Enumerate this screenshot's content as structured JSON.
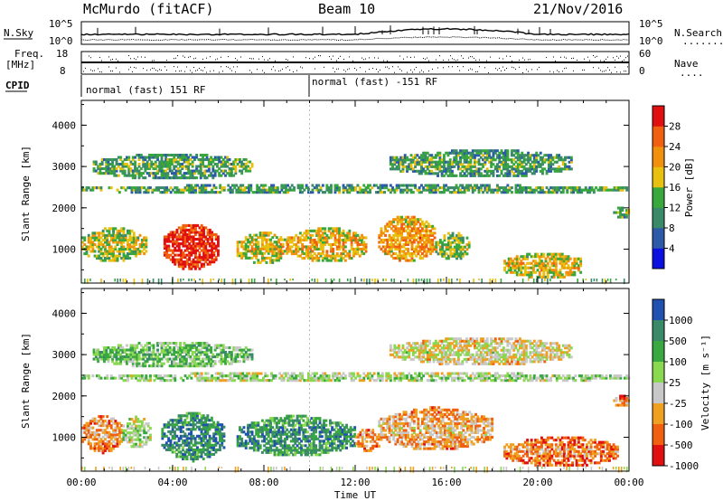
{
  "header": {
    "station": "McMurdo (fitACF)",
    "beam": "Beam 10",
    "date": "21/Nov/2016"
  },
  "top_strip": {
    "left_label": "N.Sky",
    "left_ticks": [
      "10^5",
      "10^0"
    ],
    "right_label": "N.Search",
    "right_ticks": [
      "10^5",
      "10^0"
    ],
    "right_legend_dots": "........"
  },
  "freq_strip": {
    "label_line1": "Freq.",
    "label_line2": "[MHz]",
    "left_ticks": [
      "18",
      "8"
    ],
    "right_label": "Nave",
    "right_ticks": [
      "60",
      "0"
    ],
    "right_legend_dots": "...."
  },
  "cpid_strip": {
    "label": "CPID",
    "segments": [
      {
        "text": "normal (fast) 151 RF",
        "start_hour": 0
      },
      {
        "text": "normal (fast) -151 RF",
        "start_hour": 10
      }
    ]
  },
  "chart_data": [
    {
      "type": "heatmap",
      "panel": "power",
      "ylabel": "Slant Range [km]",
      "ylim": [
        180,
        4600
      ],
      "yticks": [
        "1000",
        "2000",
        "3000",
        "4000"
      ],
      "xlim_hours": [
        0,
        24
      ],
      "colorbar": {
        "label": "Power [dB]",
        "ticks": [
          "4",
          "8",
          "12",
          "16",
          "20",
          "24",
          "28"
        ],
        "range": [
          0,
          30
        ]
      },
      "bands": [
        {
          "t0": 0.0,
          "t1": 2.8,
          "r0": 650,
          "r1": 1500,
          "level": 0.45
        },
        {
          "t0": 3.6,
          "t1": 6.0,
          "r0": 450,
          "r1": 1600,
          "level": 0.85
        },
        {
          "t0": 6.8,
          "t1": 9.0,
          "r0": 600,
          "r1": 1400,
          "level": 0.5
        },
        {
          "t0": 9.0,
          "t1": 12.5,
          "r0": 650,
          "r1": 1500,
          "level": 0.55
        },
        {
          "t0": 13.0,
          "t1": 15.5,
          "r0": 650,
          "r1": 1800,
          "level": 0.6
        },
        {
          "t0": 15.5,
          "t1": 17.0,
          "r0": 700,
          "r1": 1400,
          "level": 0.4
        },
        {
          "t0": 18.5,
          "t1": 22.0,
          "r0": 250,
          "r1": 900,
          "level": 0.5
        },
        {
          "t0": 0.0,
          "t1": 24.0,
          "r0": 2300,
          "r1": 2550,
          "level": 0.3
        },
        {
          "t0": 0.5,
          "t1": 7.5,
          "r0": 2650,
          "r1": 3300,
          "level": 0.3
        },
        {
          "t0": 13.5,
          "t1": 21.5,
          "r0": 2700,
          "r1": 3400,
          "level": 0.3
        },
        {
          "t0": 23.3,
          "t1": 24.0,
          "r0": 1700,
          "r1": 2000,
          "level": 0.35
        }
      ]
    },
    {
      "type": "heatmap",
      "panel": "velocity",
      "ylabel": "Slant Range [km]",
      "ylim": [
        180,
        4600
      ],
      "yticks": [
        "1000",
        "2000",
        "3000",
        "4000"
      ],
      "xlim_hours": [
        0,
        24
      ],
      "xticks": [
        "00:00",
        "04:00",
        "08:00",
        "12:00",
        "16:00",
        "20:00",
        "00:00"
      ],
      "xlabel": "Time UT",
      "colorbar": {
        "label": "Velocity [m s⁻¹]",
        "ticks": [
          "1000",
          "500",
          "100",
          "25",
          "-25",
          "-100",
          "-500",
          "-1000"
        ]
      },
      "bands": [
        {
          "t0": 0.0,
          "t1": 1.8,
          "r0": 600,
          "r1": 1500,
          "level": 0.2
        },
        {
          "t0": 1.8,
          "t1": 3.0,
          "r0": 700,
          "r1": 1500,
          "level": 0.45
        },
        {
          "t0": 3.5,
          "t1": 6.2,
          "r0": 400,
          "r1": 1600,
          "level": 0.72
        },
        {
          "t0": 6.8,
          "t1": 12.0,
          "r0": 500,
          "r1": 1500,
          "level": 0.7
        },
        {
          "t0": 12.0,
          "t1": 13.0,
          "r0": 600,
          "r1": 1200,
          "level": 0.2
        },
        {
          "t0": 13.0,
          "t1": 18.0,
          "r0": 650,
          "r1": 1700,
          "level": 0.25
        },
        {
          "t0": 18.5,
          "t1": 23.5,
          "r0": 250,
          "r1": 1000,
          "level": 0.15
        },
        {
          "t0": 0.0,
          "t1": 24.0,
          "r0": 2300,
          "r1": 2550,
          "level": 0.45
        },
        {
          "t0": 0.5,
          "t1": 7.5,
          "r0": 2650,
          "r1": 3300,
          "level": 0.55
        },
        {
          "t0": 13.5,
          "t1": 21.5,
          "r0": 2700,
          "r1": 3400,
          "level": 0.35
        },
        {
          "t0": 23.3,
          "t1": 24.0,
          "r0": 1700,
          "r1": 2000,
          "level": 0.2
        }
      ]
    }
  ],
  "colors": {
    "power": [
      "#0b10e0",
      "#2c5aa8",
      "#3a8a6a",
      "#39a83c",
      "#e8c010",
      "#f0900c",
      "#f06010",
      "#e01010"
    ],
    "velocity": [
      "#e01010",
      "#f06010",
      "#f0a020",
      "#c8c8c8",
      "#8ad850",
      "#3aa840",
      "#3a8a6a",
      "#2050b0"
    ]
  }
}
